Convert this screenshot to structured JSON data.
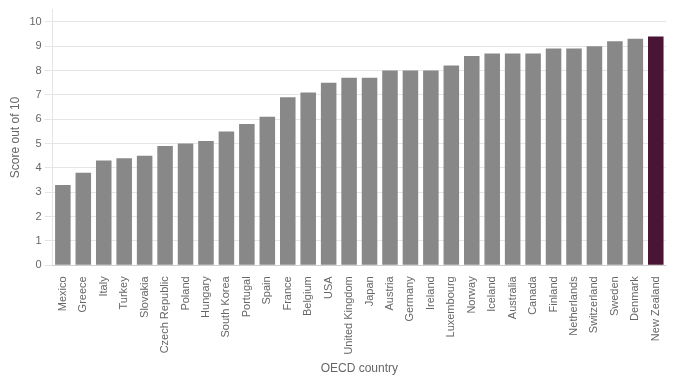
{
  "chart_data": {
    "type": "bar",
    "categories": [
      "Mexico",
      "Greece",
      "Italy",
      "Turkey",
      "Slovakia",
      "Czech Republic",
      "Poland",
      "Hungary",
      "South Korea",
      "Portugal",
      "Spain",
      "France",
      "Belgium",
      "USA",
      "United Kingdom",
      "Japan",
      "Austria",
      "Germany",
      "Ireland",
      "Luxembourg",
      "Norway",
      "Iceland",
      "Australia",
      "Canada",
      "Finland",
      "Netherlands",
      "Switzerland",
      "Sweden",
      "Denmark",
      "New Zealand"
    ],
    "values": [
      3.3,
      3.8,
      4.3,
      4.4,
      4.5,
      4.9,
      5.0,
      5.1,
      5.5,
      5.8,
      6.1,
      6.9,
      7.1,
      7.5,
      7.7,
      7.7,
      8.0,
      8.0,
      8.0,
      8.2,
      8.6,
      8.7,
      8.7,
      8.7,
      8.9,
      8.9,
      9.0,
      9.2,
      9.3,
      9.4
    ],
    "colors": [
      "#888888",
      "#888888",
      "#888888",
      "#888888",
      "#888888",
      "#888888",
      "#888888",
      "#888888",
      "#888888",
      "#888888",
      "#888888",
      "#888888",
      "#888888",
      "#888888",
      "#888888",
      "#888888",
      "#888888",
      "#888888",
      "#888888",
      "#888888",
      "#888888",
      "#888888",
      "#888888",
      "#888888",
      "#888888",
      "#888888",
      "#888888",
      "#888888",
      "#888888",
      "#4a1535"
    ],
    "xlabel": "OECD country",
    "ylabel": "Score out of 10",
    "ylim": [
      0,
      10.5
    ],
    "yticks": [
      0,
      1,
      2,
      3,
      4,
      5,
      6,
      7,
      8,
      9,
      10
    ],
    "grid": true
  }
}
